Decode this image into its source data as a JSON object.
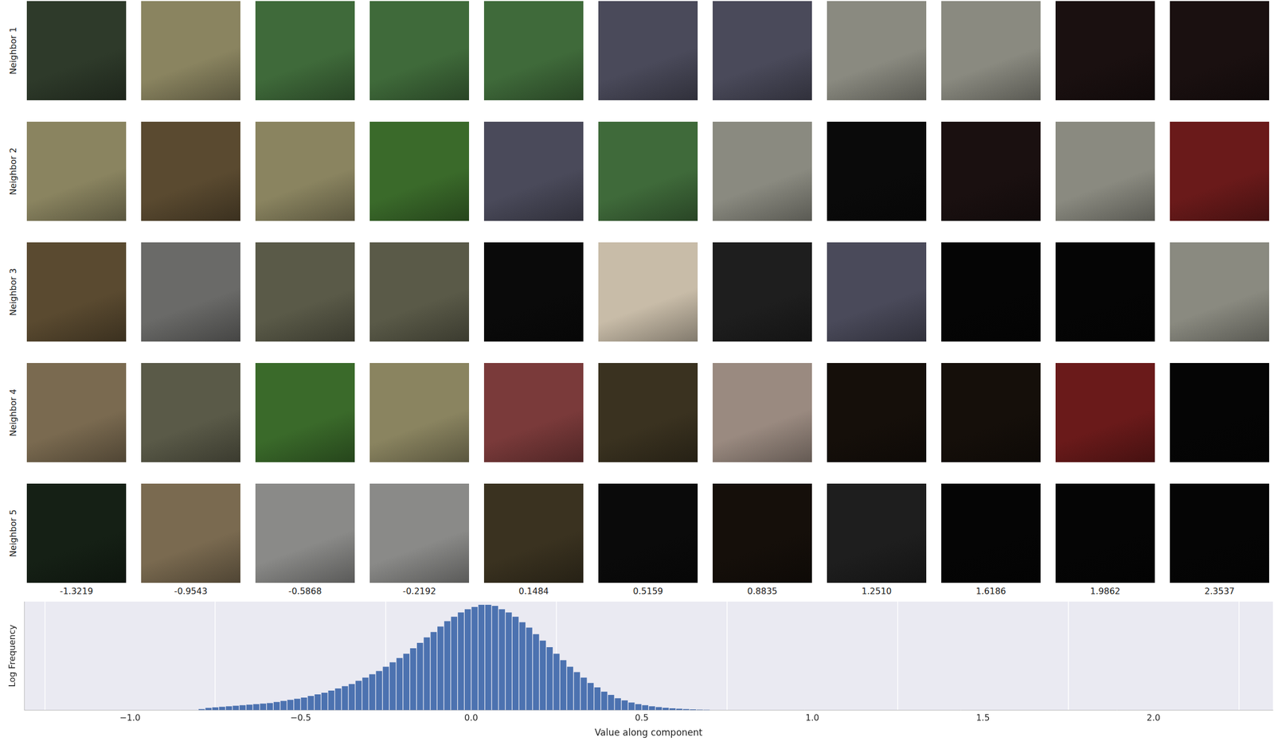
{
  "chart_data": {
    "type": "histogram",
    "x_label": "Value along component",
    "y_label": "Log Frequency",
    "color": "#4c72b0",
    "bins": [
      -0.8,
      -0.78,
      -0.76,
      -0.74,
      -0.72,
      -0.7,
      -0.68,
      -0.66,
      -0.64,
      -0.62,
      -0.6,
      -0.58,
      -0.56,
      -0.54,
      -0.52,
      -0.5,
      -0.48,
      -0.46,
      -0.44,
      -0.42,
      -0.4,
      -0.38,
      -0.36,
      -0.34,
      -0.32,
      -0.3,
      -0.28,
      -0.26,
      -0.24,
      -0.22,
      -0.2,
      -0.18,
      -0.16,
      -0.14,
      -0.12,
      -0.1,
      -0.08,
      -0.06,
      -0.04,
      -0.02,
      0,
      0.02,
      0.04,
      0.06,
      0.08,
      0.1,
      0.12,
      0.14,
      0.16,
      0.18,
      0.2,
      0.22,
      0.24,
      0.26,
      0.28,
      0.3,
      0.32,
      0.34,
      0.36,
      0.38,
      0.4,
      0.42,
      0.44,
      0.46,
      0.48,
      0.5,
      0.52,
      0.54,
      0.56,
      0.58,
      0.6,
      0.62,
      0.64,
      0.66,
      0.68,
      0.7
    ],
    "values": [
      0.05,
      0.1,
      0.125,
      0.15,
      0.175,
      0.2,
      0.225,
      0.25,
      0.275,
      0.3,
      0.325,
      0.375,
      0.425,
      0.475,
      0.525,
      0.575,
      0.65,
      0.725,
      0.8,
      0.9,
      1.0,
      1.1,
      1.2,
      1.35,
      1.5,
      1.65,
      1.8,
      2.0,
      2.2,
      2.4,
      2.6,
      2.85,
      3.1,
      3.35,
      3.6,
      3.85,
      4.1,
      4.3,
      4.5,
      4.65,
      4.75,
      4.85,
      4.85,
      4.8,
      4.65,
      4.5,
      4.3,
      4.05,
      3.8,
      3.5,
      3.2,
      2.9,
      2.6,
      2.3,
      2.0,
      1.75,
      1.5,
      1.25,
      1.05,
      0.85,
      0.7,
      0.55,
      0.45,
      0.35,
      0.275,
      0.225,
      0.175,
      0.14,
      0.11,
      0.085,
      0.065,
      0.05,
      0.035,
      0.025,
      0.015
    ],
    "xlim": [
      -1.31,
      2.35
    ],
    "xticks": [
      {
        "value": -1,
        "label": "−1.0"
      },
      {
        "value": -0.5,
        "label": "−0.5"
      },
      {
        "value": 0,
        "label": "0.0"
      },
      {
        "value": 0.5,
        "label": "0.5"
      },
      {
        "value": 1,
        "label": "1.0"
      },
      {
        "value": 1.5,
        "label": "1.5"
      },
      {
        "value": 2,
        "label": "2.0"
      }
    ],
    "ylim": [
      0,
      5
    ],
    "grid": true,
    "tick_labels": "x",
    "image_grid": {
      "row_labels": [
        "Neighbor 1",
        "Neighbor 2",
        "Neighbor 3",
        "Neighbor 4",
        "Neighbor 5"
      ],
      "column_values": [
        {
          "value": -1.3219,
          "label": "-1.3219"
        },
        {
          "value": -0.9543,
          "label": "-0.9543"
        },
        {
          "value": -0.5868,
          "label": "-0.5868"
        },
        {
          "value": -0.2192,
          "label": "-0.2192"
        },
        {
          "value": 0.1484,
          "label": "0.1484"
        },
        {
          "value": 0.5159,
          "label": "0.5159"
        },
        {
          "value": 0.8835,
          "label": "0.8835"
        },
        {
          "value": 1.251,
          "label": "1.2510"
        },
        {
          "value": 1.6186,
          "label": "1.6186"
        },
        {
          "value": 1.9862,
          "label": "1.9862"
        },
        {
          "value": 2.3537,
          "label": "2.3537"
        }
      ]
    }
  }
}
